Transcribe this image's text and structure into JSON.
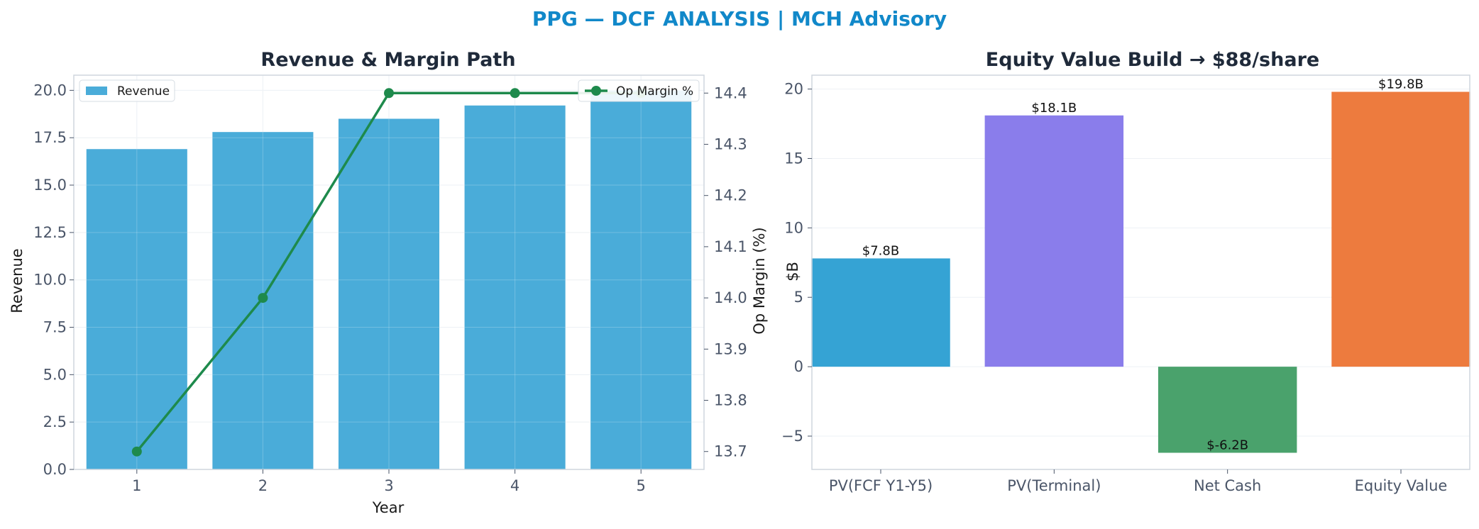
{
  "suptitle": "PPG — DCF ANALYSIS | MCH Advisory",
  "colors": {
    "title": "#1188c9",
    "bar_revenue": "#4aacd9",
    "margin_line": "#1e8a4c",
    "equity_bars": [
      "#35a3d4",
      "#8a7deb",
      "#4aa26c",
      "#ed7b3e"
    ]
  },
  "chart_data": [
    {
      "type": "bar",
      "title": "Revenue & Margin Path",
      "xlabel": "Year",
      "ylabel": "Revenue",
      "y2label": "Op Margin (%)",
      "categories": [
        "1",
        "2",
        "3",
        "4",
        "5"
      ],
      "ylim": [
        0,
        20.8
      ],
      "y2lim": [
        13.665,
        14.435
      ],
      "yticks": [
        "0.0",
        "2.5",
        "5.0",
        "7.5",
        "10.0",
        "12.5",
        "15.0",
        "17.5",
        "20.0"
      ],
      "y2ticks": [
        "13.7",
        "13.8",
        "13.9",
        "14.0",
        "14.1",
        "14.2",
        "14.3",
        "14.4"
      ],
      "grid": true,
      "series": [
        {
          "name": "Revenue",
          "kind": "bar",
          "axis": "left",
          "values": [
            16.9,
            17.8,
            18.5,
            19.2,
            20.0
          ]
        },
        {
          "name": "Op Margin %",
          "kind": "line",
          "axis": "right",
          "values": [
            13.7,
            14.0,
            14.4,
            14.4,
            14.4
          ]
        }
      ],
      "legend": [
        {
          "name": "Revenue",
          "placement": "top-left"
        },
        {
          "name": "Op Margin %",
          "placement": "top-right"
        }
      ]
    },
    {
      "type": "bar",
      "title": "Equity Value Build → $88/share",
      "xlabel": "",
      "ylabel": "$B",
      "categories": [
        "PV(FCF Y1-Y5)",
        "PV(Terminal)",
        "Net Cash",
        "Equity Value"
      ],
      "values": [
        7.8,
        18.1,
        -6.2,
        19.8
      ],
      "data_labels": [
        "$7.8B",
        "$18.1B",
        "$-6.2B",
        "$19.8B"
      ],
      "ylim": [
        -7.4,
        21.0
      ],
      "yticks": [
        "−5",
        "0",
        "5",
        "10",
        "15",
        "20"
      ],
      "grid": true
    }
  ]
}
